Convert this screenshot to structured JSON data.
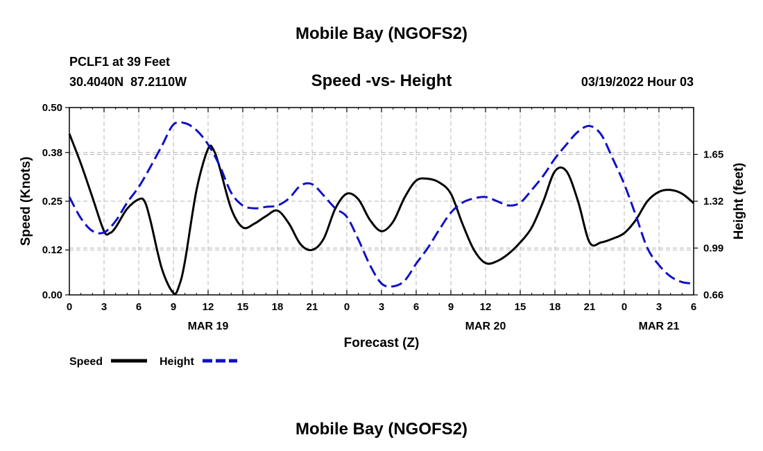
{
  "chart_data": {
    "type": "line",
    "title": "Mobile Bay (NGOFS2)",
    "title_repeat": "Mobile Bay (NGOFS2)",
    "subtitle": "Speed -vs- Height",
    "station": "PCLF1 at 39 Feet",
    "coordinates": "30.4040N  87.2110W",
    "datetime": "03/19/2022 Hour 03",
    "xlabel": "Forecast (Z)",
    "ylabel_left": "Speed (Knots)",
    "ylabel_right": "Height (feet)",
    "x_hours_range": [
      0,
      54
    ],
    "ylim_left": [
      0,
      0.5
    ],
    "ylim_right": [
      0.66,
      1.98
    ],
    "x_tick_hours": [
      0,
      3,
      6,
      9,
      12,
      15,
      18,
      21,
      24,
      27,
      30,
      33,
      36,
      39,
      42,
      45,
      48,
      51,
      54
    ],
    "x_tick_labels": [
      "0",
      "3",
      "6",
      "9",
      "12",
      "15",
      "18",
      "21",
      "0",
      "3",
      "6",
      "9",
      "12",
      "15",
      "18",
      "21",
      "0",
      "3",
      "6"
    ],
    "date_labels": [
      {
        "label": "MAR 19",
        "hour": 12
      },
      {
        "label": "MAR 20",
        "hour": 36
      },
      {
        "label": "MAR 21",
        "hour": 51
      }
    ],
    "y_left_ticks": [
      0.0,
      0.12,
      0.25,
      0.38,
      0.5
    ],
    "y_left_tick_labels": [
      "0.00",
      "0.12",
      "0.25",
      "0.38",
      "0.50"
    ],
    "y_right_ticks": [
      0.66,
      0.99,
      1.32,
      1.65
    ],
    "y_right_tick_labels": [
      "0.66",
      "0.99",
      "1.32",
      "1.65"
    ],
    "grid": true,
    "legend": [
      {
        "name": "Speed",
        "color": "#000000",
        "dash": false
      },
      {
        "name": "Height",
        "color": "#1010c8",
        "dash": true
      }
    ],
    "series": [
      {
        "name": "Speed",
        "axis": "left",
        "color": "#000000",
        "x": [
          0,
          1,
          2,
          3,
          3.5,
          4,
          5,
          6,
          6.5,
          7,
          8,
          9,
          9.5,
          10,
          11,
          12,
          12.5,
          13,
          14,
          15,
          16,
          17,
          18,
          19,
          20,
          21,
          22,
          23,
          24,
          25,
          26,
          27,
          28,
          29,
          30,
          31,
          32,
          33,
          34,
          35,
          36,
          37,
          38,
          39,
          40,
          41,
          42,
          43,
          44,
          45,
          46,
          47,
          48,
          49,
          50,
          51,
          52,
          53,
          54
        ],
        "values": [
          0.43,
          0.35,
          0.26,
          0.17,
          0.165,
          0.18,
          0.23,
          0.255,
          0.25,
          0.2,
          0.07,
          0.005,
          0.025,
          0.09,
          0.28,
          0.39,
          0.385,
          0.34,
          0.23,
          0.18,
          0.19,
          0.21,
          0.225,
          0.19,
          0.135,
          0.12,
          0.15,
          0.23,
          0.27,
          0.255,
          0.2,
          0.17,
          0.195,
          0.26,
          0.305,
          0.31,
          0.3,
          0.27,
          0.19,
          0.12,
          0.085,
          0.09,
          0.11,
          0.14,
          0.18,
          0.25,
          0.33,
          0.33,
          0.25,
          0.14,
          0.14,
          0.15,
          0.165,
          0.2,
          0.25,
          0.275,
          0.28,
          0.27,
          0.245
        ]
      },
      {
        "name": "Height",
        "axis": "right",
        "color": "#1010c8",
        "x": [
          0,
          1,
          2,
          3,
          4,
          5,
          6,
          7,
          8,
          9,
          10,
          11,
          12,
          13,
          14,
          15,
          16,
          17,
          18,
          19,
          20,
          21,
          22,
          23,
          24,
          25,
          26,
          27,
          28,
          29,
          30,
          31,
          32,
          33,
          34,
          35,
          36,
          37,
          38,
          39,
          40,
          41,
          42,
          43,
          44,
          45,
          46,
          47,
          48,
          49,
          50,
          51,
          52,
          53,
          54
        ],
        "values": [
          1.35,
          1.2,
          1.11,
          1.1,
          1.18,
          1.31,
          1.42,
          1.56,
          1.71,
          1.86,
          1.87,
          1.82,
          1.72,
          1.57,
          1.38,
          1.29,
          1.27,
          1.28,
          1.29,
          1.34,
          1.43,
          1.44,
          1.36,
          1.27,
          1.21,
          1.05,
          0.87,
          0.74,
          0.72,
          0.76,
          0.88,
          0.99,
          1.12,
          1.24,
          1.31,
          1.34,
          1.35,
          1.32,
          1.29,
          1.31,
          1.4,
          1.5,
          1.62,
          1.72,
          1.81,
          1.85,
          1.79,
          1.62,
          1.44,
          1.22,
          0.99,
          0.87,
          0.79,
          0.75,
          0.74
        ]
      }
    ]
  }
}
